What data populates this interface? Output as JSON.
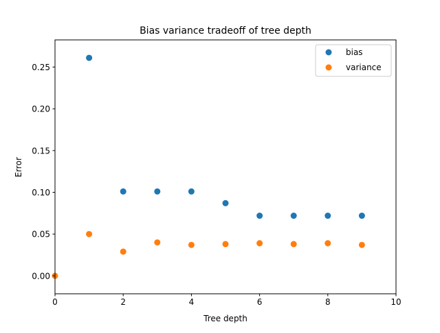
{
  "chart_data": {
    "type": "scatter",
    "title": "Bias variance tradeoff of tree depth",
    "xlabel": "Tree depth",
    "ylabel": "Error",
    "xlim": [
      0,
      10
    ],
    "ylim": [
      -0.0215,
      0.2825
    ],
    "xticks": [
      0,
      2,
      4,
      6,
      8,
      10
    ],
    "yticks": [
      0.0,
      0.05,
      0.1,
      0.15,
      0.2,
      0.25
    ],
    "ytick_labels": [
      "0.00",
      "0.05",
      "0.10",
      "0.15",
      "0.20",
      "0.25"
    ],
    "grid": false,
    "legend_position": "upper right",
    "series": [
      {
        "name": "bias",
        "color": "#1f77b4",
        "x": [
          1,
          2,
          3,
          4,
          5,
          6,
          7,
          8,
          9
        ],
        "y": [
          0.261,
          0.101,
          0.101,
          0.101,
          0.087,
          0.072,
          0.072,
          0.072,
          0.072
        ]
      },
      {
        "name": "variance",
        "color": "#ff7f0e",
        "x": [
          0,
          1,
          2,
          3,
          4,
          5,
          6,
          7,
          8,
          9
        ],
        "y": [
          0.0,
          0.05,
          0.029,
          0.04,
          0.037,
          0.038,
          0.039,
          0.038,
          0.039,
          0.037
        ]
      }
    ]
  }
}
